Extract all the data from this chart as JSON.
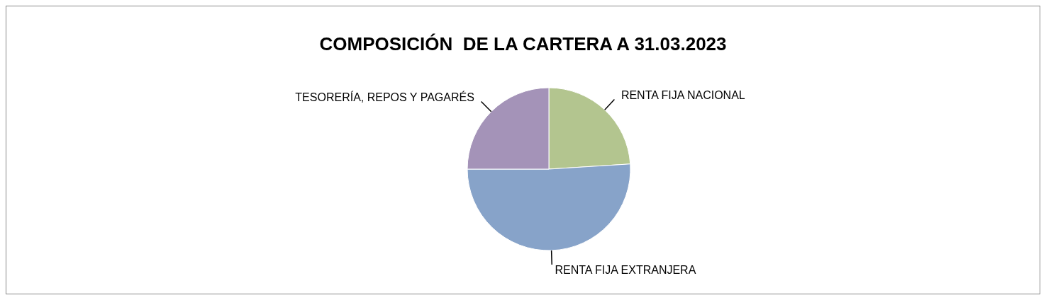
{
  "chart_data": {
    "type": "pie",
    "title": "COMPOSICIÓN  DE LA CARTERA A 31.03.2023",
    "categories": [
      "RENTA FIJA NACIONAL",
      "RENTA FIJA EXTRANJERA",
      "TESORERÍA, REPOS Y PAGARÉS"
    ],
    "values": [
      24,
      51,
      25
    ],
    "colors": [
      "#b3c58f",
      "#87a3c9",
      "#a493b8"
    ],
    "legend": false
  }
}
